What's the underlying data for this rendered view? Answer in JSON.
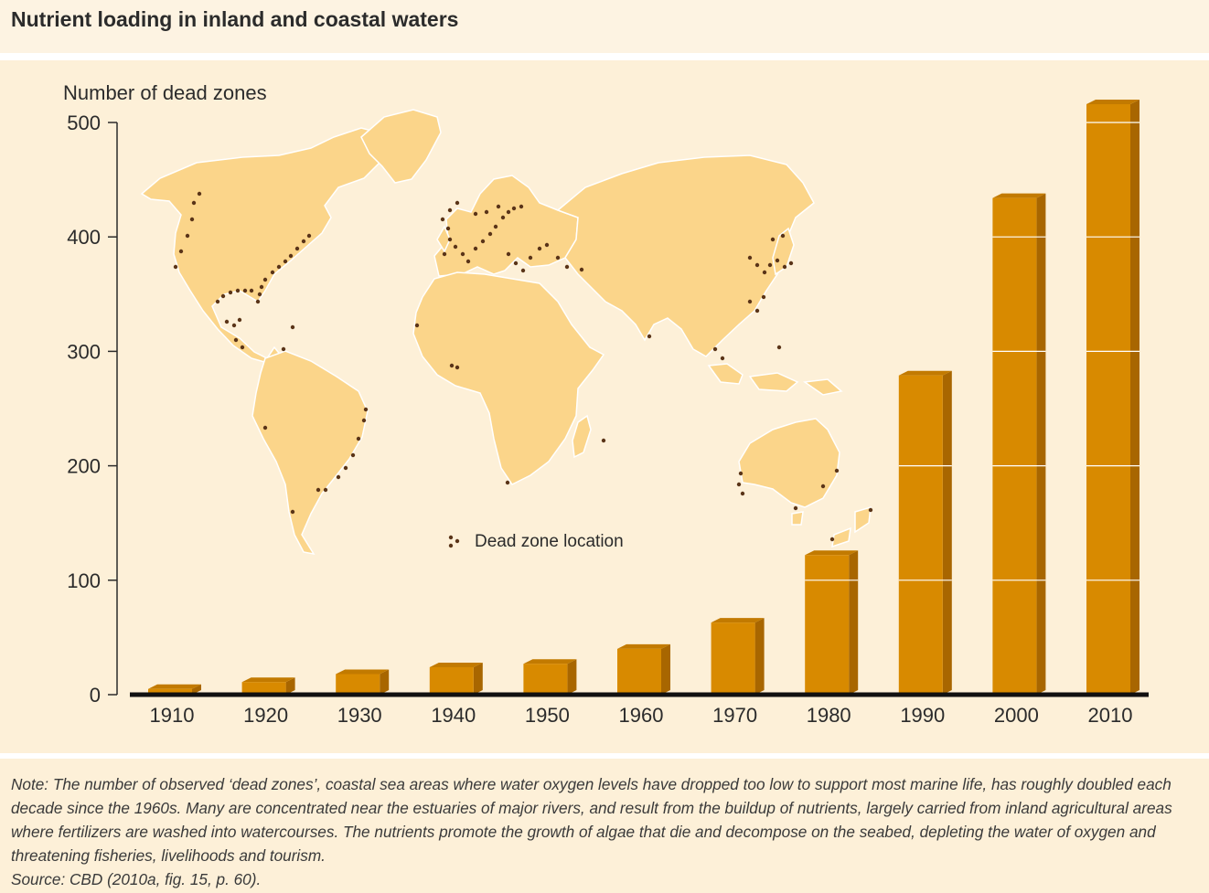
{
  "title": "Nutrient loading in inland and coastal waters",
  "colors": {
    "bar_front": "#d88a00",
    "bar_side": "#a86600",
    "bar_top": "#c27a00",
    "land": "#fbd58a",
    "dot": "#5a3418",
    "panel_bg": "#fdf0d8"
  },
  "map_legend": {
    "label": "Dead zone location",
    "icon": "dead-zone-dots-icon"
  },
  "chart_data": {
    "type": "bar",
    "title": "",
    "xlabel": "",
    "ylabel": "Number of dead zones",
    "ylim": [
      0,
      500
    ],
    "yticks": [
      0,
      100,
      200,
      300,
      400,
      500
    ],
    "grid": false,
    "categories": [
      "1910",
      "1920",
      "1930",
      "1940",
      "1950",
      "1960",
      "1970",
      "1980",
      "1990",
      "2000",
      "2010"
    ],
    "values": [
      5,
      11,
      18,
      24,
      27,
      40,
      63,
      122,
      279,
      434,
      516
    ]
  },
  "note": {
    "text": "Note: The number of observed ‘dead zones’, coastal sea areas where water oxygen levels have dropped too low to support most marine life, has roughly doubled each decade since the 1960s. Many are concentrated near the estuaries of major rivers, and result from the buildup of nutrients, largely carried from inland agricultural areas where fertilizers are washed into watercourses. The nutrients promote the growth of algae that die and decompose on the seabed, depleting the water of oxygen and threatening fisheries, livelihoods and tourism.",
    "source": "Source: CBD (2010a, fig. 15, p. 60)."
  }
}
